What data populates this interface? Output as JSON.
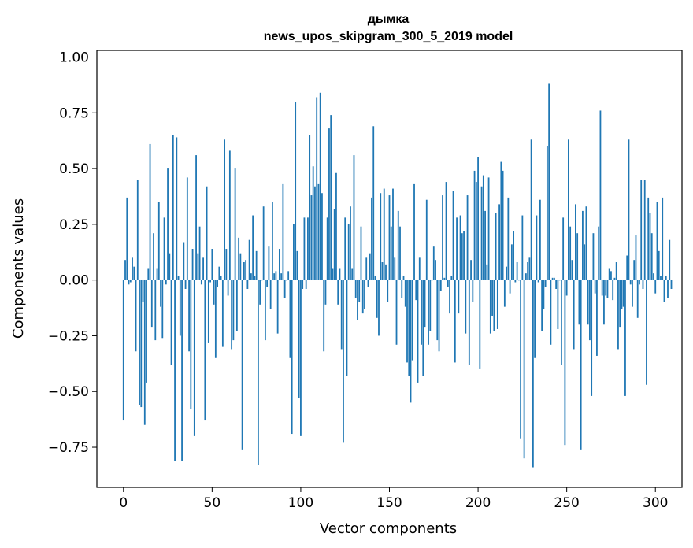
{
  "chart_data": {
    "type": "bar",
    "title_line1": "дымка",
    "title_line2": "news_upos_skipgram_300_5_2019 model",
    "xlabel": "Vector components",
    "ylabel": "Components values",
    "xlim": [
      -15,
      315
    ],
    "ylim": [
      -0.93,
      1.03
    ],
    "x_ticks": [
      0,
      50,
      100,
      150,
      200,
      250,
      300
    ],
    "y_ticks": [
      -0.75,
      -0.5,
      -0.25,
      0.0,
      0.25,
      0.5,
      0.75,
      1.0
    ],
    "y_tick_labels": [
      "−0.75",
      "−0.50",
      "−0.25",
      "0.00",
      "0.25",
      "0.50",
      "0.75",
      "1.00"
    ],
    "bar_color": "#1f77b4",
    "values": [
      -0.63,
      0.09,
      0.37,
      -0.02,
      -0.01,
      0.1,
      0.06,
      -0.32,
      0.45,
      -0.56,
      -0.57,
      -0.1,
      -0.65,
      -0.46,
      0.05,
      0.61,
      -0.21,
      0.21,
      -0.27,
      0.05,
      0.35,
      -0.12,
      -0.26,
      0.28,
      -0.02,
      0.5,
      0.12,
      -0.38,
      0.65,
      -0.81,
      0.64,
      0.02,
      -0.25,
      -0.81,
      0.17,
      -0.04,
      0.46,
      -0.32,
      -0.58,
      0.14,
      -0.7,
      0.56,
      0.12,
      0.24,
      -0.02,
      0.1,
      -0.63,
      0.42,
      -0.28,
      -0.01,
      0.14,
      -0.11,
      -0.35,
      -0.03,
      0.06,
      0.02,
      -0.3,
      0.63,
      0.14,
      -0.07,
      0.58,
      -0.31,
      -0.27,
      0.5,
      -0.23,
      0.19,
      0.12,
      -0.76,
      0.08,
      0.09,
      -0.04,
      0.18,
      0.03,
      0.29,
      0.02,
      0.13,
      -0.83,
      -0.11,
      0.0,
      0.33,
      -0.27,
      -0.03,
      0.15,
      -0.13,
      0.35,
      0.03,
      0.04,
      -0.24,
      0.14,
      0.03,
      0.43,
      -0.08,
      0.0,
      0.04,
      -0.35,
      -0.69,
      0.25,
      0.8,
      0.13,
      -0.53,
      -0.7,
      -0.04,
      0.28,
      -0.04,
      0.28,
      0.65,
      0.38,
      0.51,
      0.42,
      0.82,
      0.43,
      0.84,
      0.39,
      -0.32,
      -0.11,
      0.28,
      0.68,
      0.74,
      0.05,
      0.32,
      0.48,
      -0.11,
      0.05,
      -0.31,
      -0.73,
      0.28,
      -0.43,
      0.25,
      0.33,
      0.05,
      0.56,
      -0.08,
      -0.18,
      -0.1,
      0.24,
      -0.15,
      -0.13,
      0.1,
      -0.03,
      0.12,
      0.37,
      0.69,
      0.02,
      -0.17,
      -0.25,
      0.39,
      0.08,
      0.41,
      0.07,
      -0.1,
      0.38,
      0.24,
      0.41,
      0.1,
      -0.29,
      0.31,
      0.24,
      -0.08,
      0.02,
      -0.12,
      -0.37,
      -0.43,
      -0.55,
      -0.36,
      0.43,
      -0.09,
      -0.46,
      0.1,
      -0.29,
      -0.43,
      -0.21,
      0.36,
      -0.29,
      -0.23,
      0.0,
      0.15,
      0.09,
      -0.27,
      -0.32,
      -0.05,
      0.38,
      0.01,
      0.44,
      -0.03,
      -0.15,
      0.02,
      0.4,
      -0.37,
      0.28,
      -0.15,
      0.29,
      0.21,
      0.22,
      -0.24,
      0.38,
      -0.38,
      0.09,
      -0.1,
      0.49,
      0.44,
      0.55,
      -0.4,
      0.42,
      0.47,
      0.31,
      0.07,
      0.46,
      -0.24,
      -0.16,
      -0.23,
      0.3,
      -0.22,
      0.34,
      0.53,
      0.49,
      -0.12,
      0.06,
      0.37,
      -0.06,
      0.16,
      0.22,
      -0.01,
      0.08,
      0.0,
      -0.71,
      0.29,
      -0.8,
      0.03,
      0.08,
      0.1,
      0.63,
      -0.84,
      -0.35,
      0.29,
      -0.01,
      0.36,
      -0.23,
      -0.13,
      -0.03,
      0.6,
      0.88,
      -0.29,
      0.01,
      0.01,
      -0.04,
      -0.22,
      0.0,
      -0.38,
      0.28,
      -0.74,
      -0.07,
      0.63,
      0.24,
      0.09,
      -0.31,
      0.34,
      0.21,
      -0.2,
      -0.76,
      0.31,
      0.16,
      0.33,
      -0.2,
      -0.27,
      -0.52,
      0.21,
      -0.06,
      -0.34,
      0.24,
      0.76,
      -0.07,
      -0.2,
      -0.07,
      -0.08,
      0.05,
      0.04,
      -0.09,
      0.01,
      0.08,
      -0.31,
      -0.21,
      -0.13,
      -0.12,
      -0.52,
      0.11,
      0.63,
      -0.02,
      -0.12,
      0.09,
      0.2,
      -0.17,
      -0.02,
      0.45,
      -0.04,
      0.45,
      -0.47,
      0.37,
      0.3,
      0.21,
      0.03,
      -0.06,
      0.35,
      0.13,
      0.02,
      0.37,
      -0.1,
      0.02,
      -0.08,
      0.18,
      -0.04
    ]
  }
}
